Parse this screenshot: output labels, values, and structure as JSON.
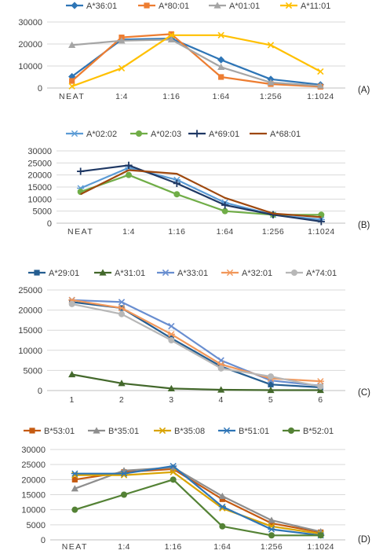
{
  "chart_data": [
    {
      "type": "line",
      "panel_label": "(A)",
      "categories": [
        "NEAT",
        "1:4",
        "1:16",
        "1:64",
        "1:256",
        "1:1024"
      ],
      "yticks": [
        "0",
        "10000",
        "20000",
        "30000"
      ],
      "ylim": [
        0,
        30000
      ],
      "grid": true,
      "legend_position": "top",
      "series": [
        {
          "name": "A*36:01",
          "color": "#2e75b6",
          "marker": "diamond",
          "values": [
            5200,
            22000,
            22500,
            12800,
            4000,
            1500
          ]
        },
        {
          "name": "A*80:01",
          "color": "#ed7d31",
          "marker": "square",
          "values": [
            3200,
            23000,
            24500,
            5000,
            1800,
            600
          ]
        },
        {
          "name": "A*01:01",
          "color": "#a5a5a5",
          "marker": "triangle",
          "values": [
            19500,
            21500,
            22000,
            9500,
            2500,
            1000
          ]
        },
        {
          "name": "A*11:01",
          "color": "#ffc000",
          "marker": "x",
          "values": [
            800,
            9000,
            24000,
            24000,
            19500,
            7500
          ]
        }
      ]
    },
    {
      "type": "line",
      "panel_label": "(B)",
      "categories": [
        "NEAT",
        "1:4",
        "1:16",
        "1:64",
        "1:256",
        "1:1024"
      ],
      "yticks": [
        "0",
        "5000",
        "10000",
        "15000",
        "20000",
        "25000",
        "30000"
      ],
      "ylim": [
        0,
        30000
      ],
      "grid": true,
      "legend_position": "top",
      "series": [
        {
          "name": "A*02:02",
          "color": "#5b9bd5",
          "marker": "asterisk",
          "values": [
            14500,
            23000,
            18000,
            8500,
            3500,
            1500
          ]
        },
        {
          "name": "A*02:03",
          "color": "#70ad47",
          "marker": "circle",
          "values": [
            13000,
            20000,
            12000,
            5000,
            3500,
            3500
          ]
        },
        {
          "name": "A*69:01",
          "color": "#1f3864",
          "marker": "plus",
          "values": [
            21500,
            24000,
            16500,
            7500,
            3500,
            700
          ]
        },
        {
          "name": "A*68:01",
          "color": "#9e480e",
          "marker": "none",
          "values": [
            12000,
            22000,
            20500,
            10500,
            4000,
            2500
          ]
        }
      ]
    },
    {
      "type": "line",
      "panel_label": "(C)",
      "categories": [
        "1",
        "2",
        "3",
        "4",
        "5",
        "6"
      ],
      "yticks": [
        "0",
        "5000",
        "10000",
        "15000",
        "20000",
        "25000"
      ],
      "ylim": [
        0,
        25000
      ],
      "grid": true,
      "legend_position": "top",
      "series": [
        {
          "name": "A*29:01",
          "color": "#255e91",
          "marker": "square",
          "values": [
            22000,
            20500,
            13000,
            6000,
            1500,
            800
          ]
        },
        {
          "name": "A*31:01",
          "color": "#43682b",
          "marker": "triangle",
          "values": [
            4000,
            1800,
            500,
            200,
            100,
            100
          ]
        },
        {
          "name": "A*33:01",
          "color": "#698ed0",
          "marker": "x",
          "values": [
            22500,
            22000,
            16000,
            7500,
            2500,
            1200
          ]
        },
        {
          "name": "A*32:01",
          "color": "#f1975a",
          "marker": "asterisk",
          "values": [
            22500,
            20500,
            14000,
            6500,
            3000,
            2300
          ]
        },
        {
          "name": "A*74:01",
          "color": "#b7b7b7",
          "marker": "circle",
          "values": [
            21500,
            19000,
            12500,
            5500,
            3500,
            1000
          ]
        }
      ]
    },
    {
      "type": "line",
      "panel_label": "(D)",
      "categories": [
        "NEAT",
        "1:4",
        "1:16",
        "1:64",
        "1:256",
        "1:1024"
      ],
      "yticks": [
        "0",
        "5000",
        "10000",
        "15000",
        "20000",
        "25000",
        "30000"
      ],
      "ylim": [
        0,
        30000
      ],
      "grid": true,
      "legend_position": "top",
      "series": [
        {
          "name": "B*53:01",
          "color": "#c55a11",
          "marker": "square",
          "values": [
            20000,
            22500,
            23500,
            13500,
            5500,
            2500
          ]
        },
        {
          "name": "B*35:01",
          "color": "#8e8e8e",
          "marker": "triangle",
          "values": [
            17000,
            23000,
            24000,
            14500,
            6500,
            2700
          ]
        },
        {
          "name": "B*35:08",
          "color": "#d9a300",
          "marker": "x",
          "values": [
            21500,
            21500,
            22500,
            10500,
            4500,
            2000
          ]
        },
        {
          "name": "B*51:01",
          "color": "#2e75b6",
          "marker": "asterisk",
          "values": [
            22000,
            22000,
            24500,
            11000,
            3500,
            1500
          ]
        },
        {
          "name": "B*52:01",
          "color": "#548235",
          "marker": "circle",
          "values": [
            10000,
            15000,
            20000,
            4500,
            1500,
            1500
          ]
        }
      ]
    }
  ]
}
